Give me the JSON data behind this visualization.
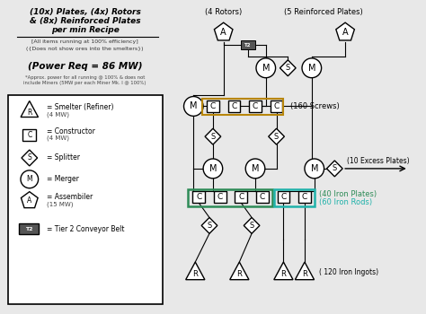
{
  "bg_color": "#e8e8e8",
  "title_lines": [
    "(10x) Plates, (4x) Rotors",
    "& (8x) Reinforced Plates",
    "per min Recipe"
  ],
  "subtitle1": "[All items running at 100% efficiency]",
  "subtitle2": "({Does not show ores into the smelters})",
  "power_req": "(Power Req = 86 MW)",
  "power_note": "*Approx. power for all running @ 100% & does not\ninclude Miners (5MW per each Miner Mk. I @ 100%)",
  "label_4rotors": "(4 Rotors)",
  "label_5rp": "(5 Reinforced Plates)",
  "label_160screws": "(160 Screws)",
  "label_10excess": "(10 Excess Plates)",
  "label_40iron": "(40 Iron Plates)",
  "label_60iron": "(60 Iron Rods)",
  "label_120ingots": "( 120 Iron Ingots)",
  "tan_color": "#b8860b",
  "green_color": "#2e8b57",
  "teal_color": "#20b2aa"
}
